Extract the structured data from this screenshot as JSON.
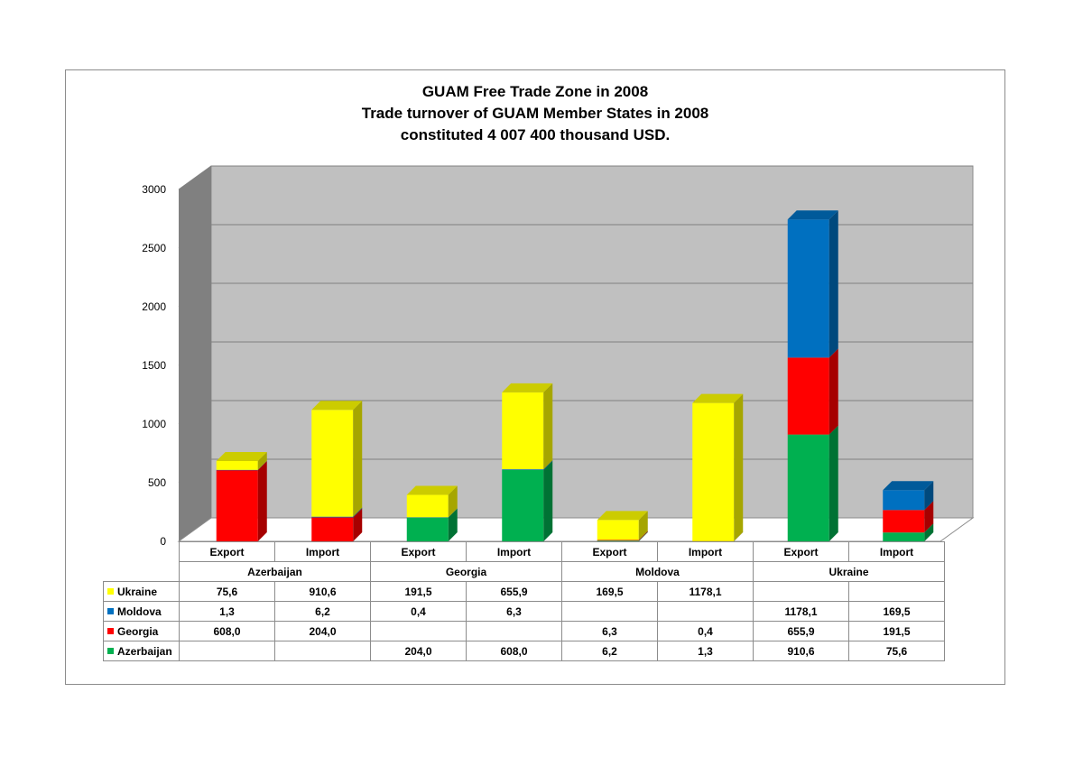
{
  "title_lines": [
    "GUAM Free Trade Zone in 2008",
    "Trade turnover of GUAM Member States in 2008",
    "constituted 4 007 400 thousand USD."
  ],
  "colors": {
    "Ukraine": "#ffff00",
    "Moldova": "#0070c0",
    "Georgia": "#ff0000",
    "Azerbaijan": "#00b050",
    "wall": "#c0c0c0",
    "side_wall": "#808080",
    "gridline": "#808080"
  },
  "chart_data": {
    "type": "bar",
    "stacked": true,
    "three_d": true,
    "categories": [
      "Export",
      "Import",
      "Export",
      "Import",
      "Export",
      "Import",
      "Export",
      "Import"
    ],
    "groups": [
      "Azerbaijan",
      "Georgia",
      "Moldova",
      "Ukraine"
    ],
    "series": [
      {
        "name": "Azerbaijan",
        "values": [
          "",
          "",
          "204,0",
          "608,0",
          "6,2",
          "1,3",
          "910,6",
          "75,6"
        ]
      },
      {
        "name": "Georgia",
        "values": [
          "608,0",
          "204,0",
          "",
          "",
          "6,3",
          "0,4",
          "655,9",
          "191,5"
        ]
      },
      {
        "name": "Moldova",
        "values": [
          "1,3",
          "6,2",
          "0,4",
          "6,3",
          "",
          "",
          "1178,1",
          "169,5"
        ]
      },
      {
        "name": "Ukraine",
        "values": [
          "75,6",
          "910,6",
          "191,5",
          "655,9",
          "169,5",
          "1178,1",
          "",
          ""
        ]
      }
    ],
    "table_row_order": [
      "Ukraine",
      "Moldova",
      "Georgia",
      "Azerbaijan"
    ],
    "yticks": [
      "0",
      "500",
      "1000",
      "1500",
      "2000",
      "2500",
      "3000"
    ],
    "ylim": [
      0,
      3000
    ],
    "grid": true,
    "legend": "data-table-left"
  }
}
